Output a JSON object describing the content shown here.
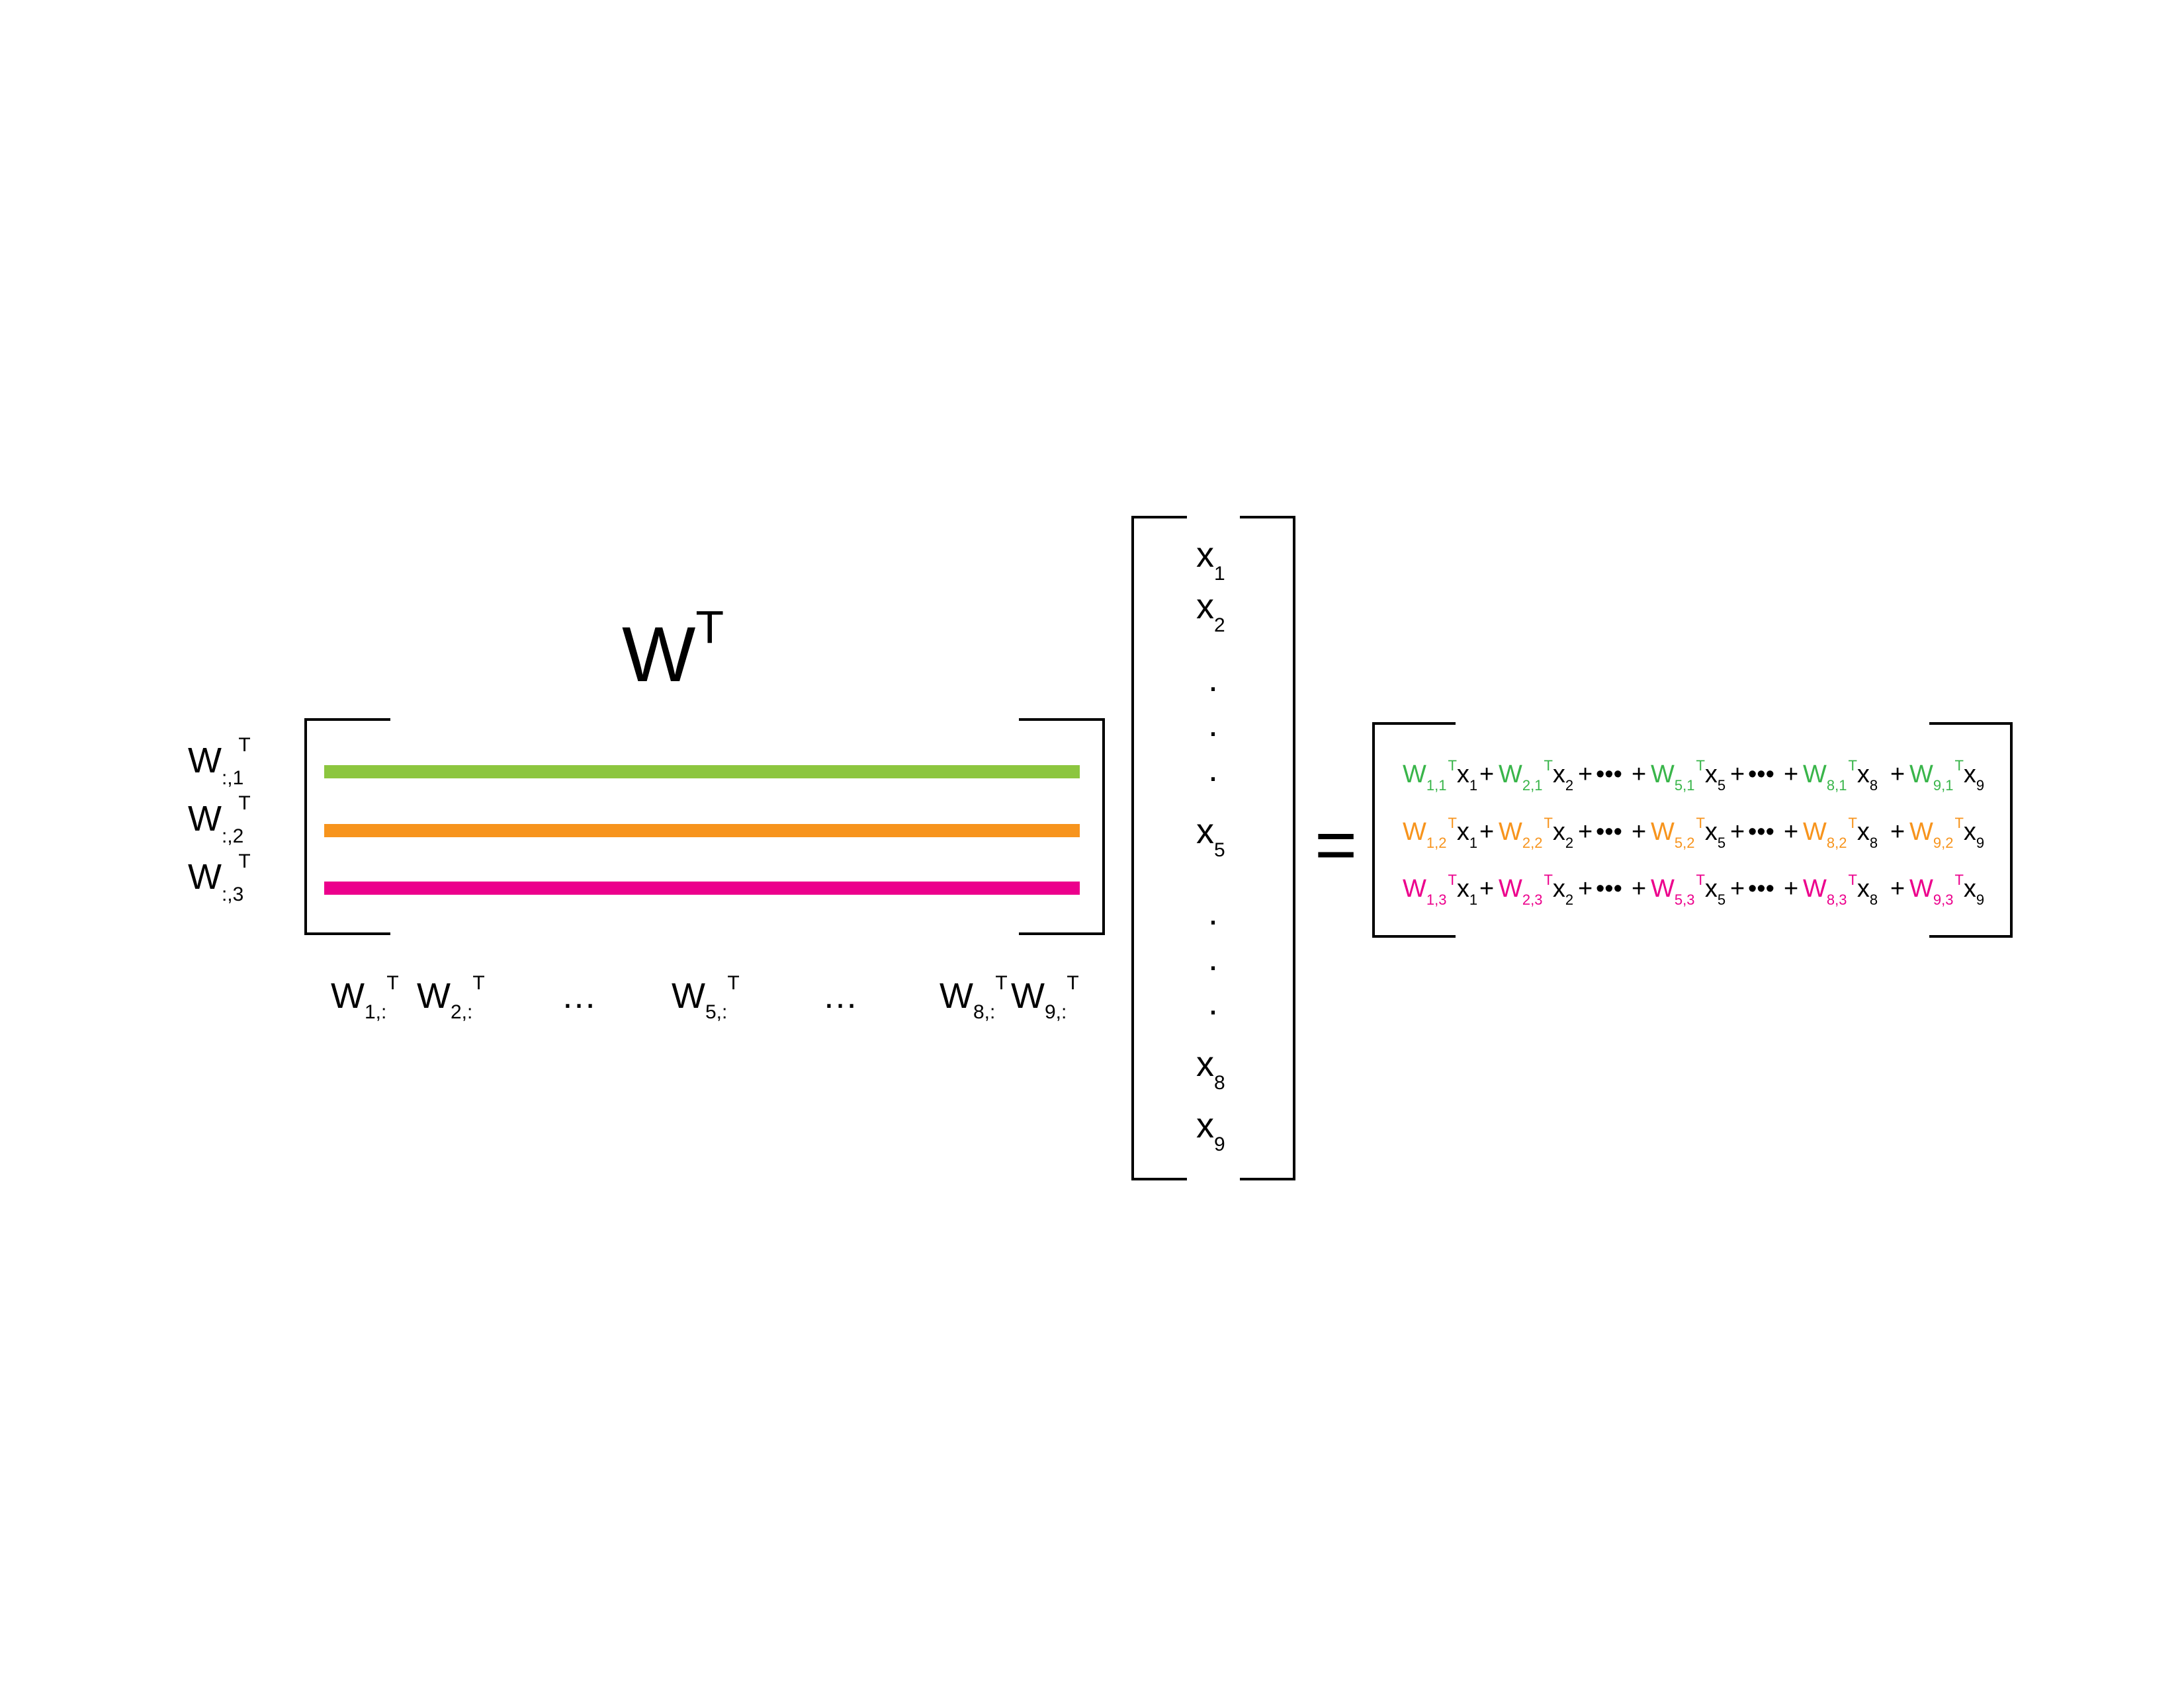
{
  "colors": {
    "green": "#8cc63f",
    "orange": "#f7941d",
    "magenta": "#ec008c",
    "green_text": "#39b54a",
    "ink": "#000000"
  },
  "matrix": {
    "base": "W",
    "sup": "T"
  },
  "row_labels": [
    {
      "base": "W",
      "sub": ":,1",
      "sup": "T",
      "color": "green"
    },
    {
      "base": "W",
      "sub": ":,2",
      "sup": "T",
      "color": "orange"
    },
    {
      "base": "W",
      "sub": ":,3",
      "sup": "T",
      "color": "magenta"
    }
  ],
  "col_labels": [
    {
      "base": "W",
      "sub": "1,:",
      "sup": "T"
    },
    {
      "base": "W",
      "sub": "2,:",
      "sup": "T"
    },
    {
      "ellipsis": "…"
    },
    {
      "base": "W",
      "sub": "5,:",
      "sup": "T"
    },
    {
      "ellipsis": "…"
    },
    {
      "base": "W",
      "sub": "8,:",
      "sup": "T"
    },
    {
      "base": "W",
      "sub": "9,:",
      "sup": "T"
    }
  ],
  "vector": {
    "base": "x",
    "entries": [
      {
        "sub": "1"
      },
      {
        "sub": "2"
      },
      {
        "dot": "."
      },
      {
        "dot": "."
      },
      {
        "dot": "."
      },
      {
        "sub": "5"
      },
      {
        "dot": "."
      },
      {
        "dot": "."
      },
      {
        "dot": "."
      },
      {
        "sub": "8"
      },
      {
        "sub": "9"
      }
    ]
  },
  "equals": "=",
  "result": {
    "plus": "+",
    "dots": "•••",
    "rows": [
      {
        "color": "green_text",
        "terms": [
          "1,1",
          "2,1",
          "5,1",
          "8,1",
          "9,1"
        ],
        "col": "1"
      },
      {
        "color": "orange",
        "terms": [
          "1,2",
          "2,2",
          "5,2",
          "8,2",
          "9,2"
        ],
        "col": "2"
      },
      {
        "color": "magenta",
        "terms": [
          "1,3",
          "2,3",
          "5,3",
          "8,3",
          "9,3"
        ],
        "col": "3"
      }
    ],
    "x_subs": [
      "1",
      "2",
      "5",
      "8",
      "9"
    ]
  }
}
